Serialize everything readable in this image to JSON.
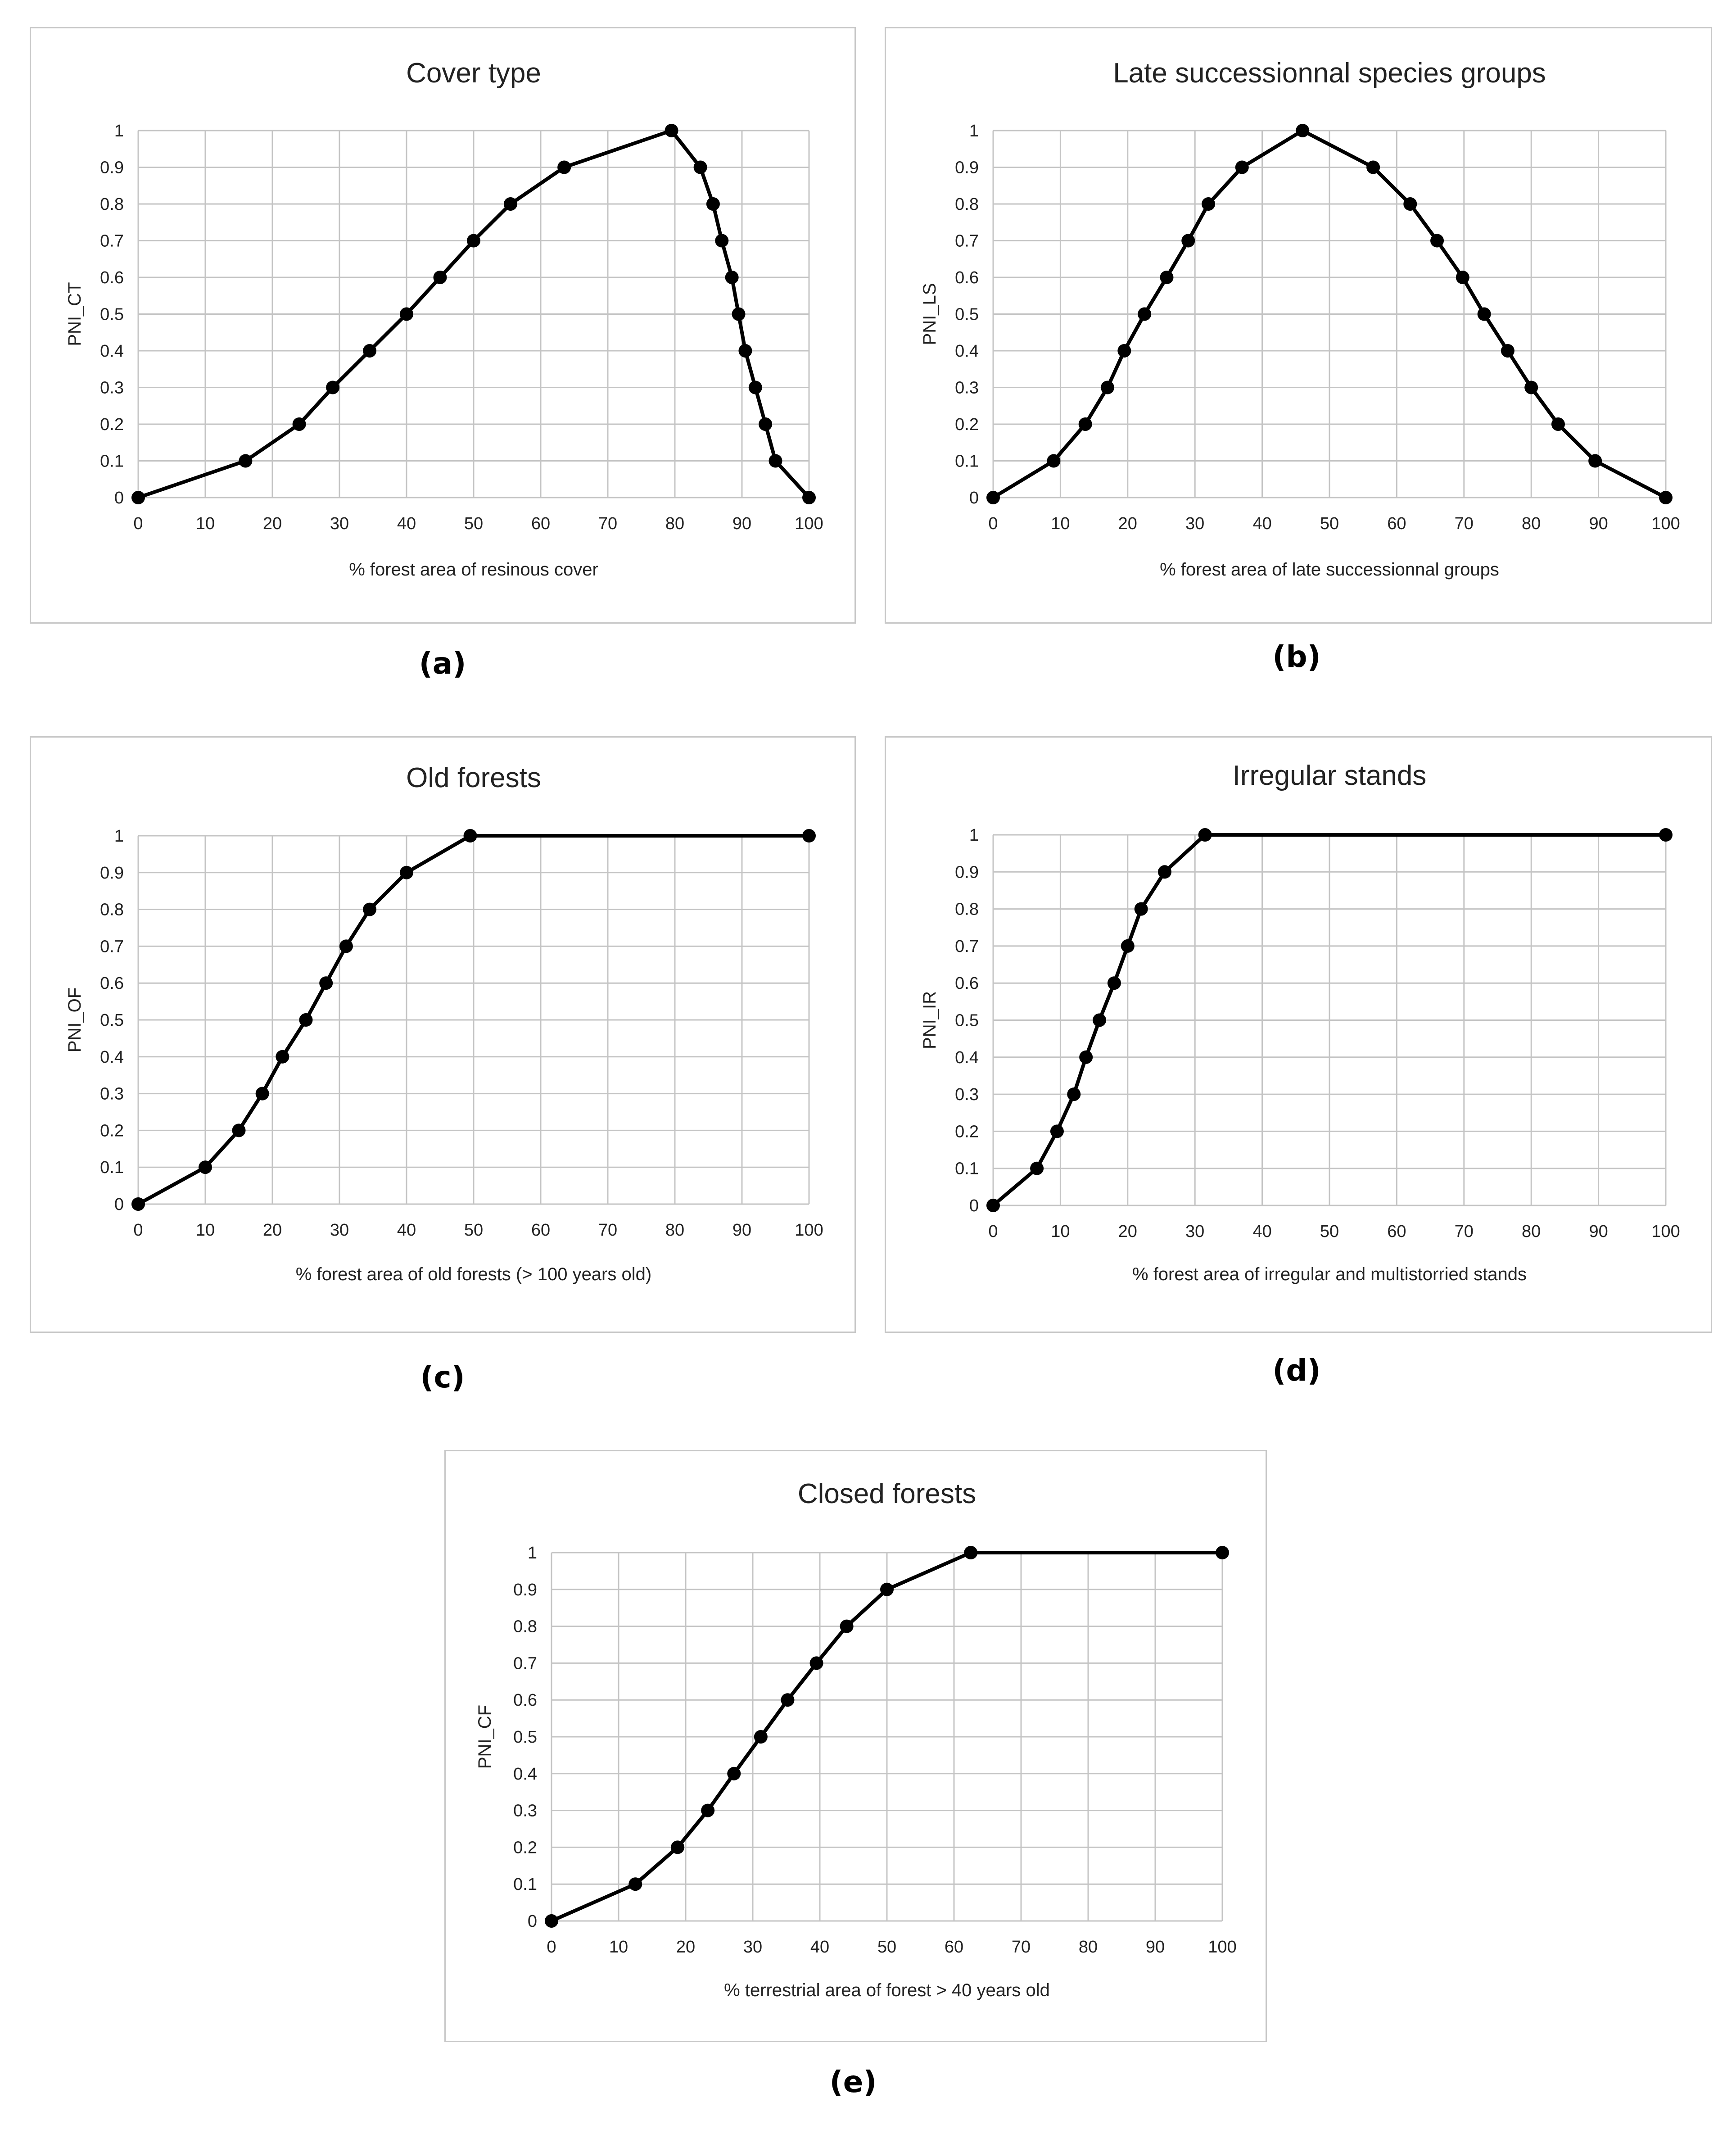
{
  "chart_data": [
    {
      "id": "a",
      "type": "line",
      "title": "Cover type",
      "xlabel": "% forest area of resinous cover",
      "ylabel": "PNI_CT",
      "caption": "(a)",
      "xlim": [
        0,
        100
      ],
      "ylim": [
        0,
        1
      ],
      "xticks": [
        "0",
        "10",
        "20",
        "30",
        "40",
        "50",
        "60",
        "70",
        "80",
        "90",
        "100"
      ],
      "yticks": [
        "0",
        "0.1",
        "0.2",
        "0.3",
        "0.4",
        "0.5",
        "0.6",
        "0.7",
        "0.8",
        "0.9",
        "1"
      ],
      "grid": true,
      "points": [
        [
          0,
          0
        ],
        [
          16,
          0.1
        ],
        [
          24,
          0.2
        ],
        [
          29,
          0.3
        ],
        [
          34.5,
          0.4
        ],
        [
          40,
          0.5
        ],
        [
          45,
          0.6
        ],
        [
          50,
          0.7
        ],
        [
          55.5,
          0.8
        ],
        [
          63.5,
          0.9
        ],
        [
          79.5,
          1
        ],
        [
          83.8,
          0.9
        ],
        [
          85.7,
          0.8
        ],
        [
          87,
          0.7
        ],
        [
          88.5,
          0.6
        ],
        [
          89.5,
          0.5
        ],
        [
          90.5,
          0.4
        ],
        [
          92,
          0.3
        ],
        [
          93.5,
          0.2
        ],
        [
          95,
          0.1
        ],
        [
          100,
          0
        ]
      ]
    },
    {
      "id": "b",
      "type": "line",
      "title": "Late successionnal species groups",
      "xlabel": "% forest area of late successionnal groups",
      "ylabel": "PNI_LS",
      "caption": "(b)",
      "xlim": [
        0,
        100
      ],
      "ylim": [
        0,
        1
      ],
      "xticks": [
        "0",
        "10",
        "20",
        "30",
        "40",
        "50",
        "60",
        "70",
        "80",
        "90",
        "100"
      ],
      "yticks": [
        "0",
        "0.1",
        "0.2",
        "0.3",
        "0.4",
        "0.5",
        "0.6",
        "0.7",
        "0.8",
        "0.9",
        "1"
      ],
      "grid": true,
      "points": [
        [
          0,
          0
        ],
        [
          9,
          0.1
        ],
        [
          13.7,
          0.2
        ],
        [
          17,
          0.3
        ],
        [
          19.5,
          0.4
        ],
        [
          22.5,
          0.5
        ],
        [
          25.8,
          0.6
        ],
        [
          29,
          0.7
        ],
        [
          32,
          0.8
        ],
        [
          37,
          0.9
        ],
        [
          46,
          1
        ],
        [
          56.5,
          0.9
        ],
        [
          62,
          0.8
        ],
        [
          66,
          0.7
        ],
        [
          69.8,
          0.6
        ],
        [
          73,
          0.5
        ],
        [
          76.5,
          0.4
        ],
        [
          80,
          0.3
        ],
        [
          84,
          0.2
        ],
        [
          89.5,
          0.1
        ],
        [
          100,
          0
        ]
      ]
    },
    {
      "id": "c",
      "type": "line",
      "title": "Old forests",
      "xlabel": "% forest area of old forests (> 100 years old)",
      "ylabel": "PNI_OF",
      "caption": "(c)",
      "xlim": [
        0,
        100
      ],
      "ylim": [
        0,
        1
      ],
      "xticks": [
        "0",
        "10",
        "20",
        "30",
        "40",
        "50",
        "60",
        "70",
        "80",
        "90",
        "100"
      ],
      "yticks": [
        "0",
        "0.1",
        "0.2",
        "0.3",
        "0.4",
        "0.5",
        "0.6",
        "0.7",
        "0.8",
        "0.9",
        "1"
      ],
      "grid": true,
      "points": [
        [
          0,
          0
        ],
        [
          10,
          0.1
        ],
        [
          15,
          0.2
        ],
        [
          18.5,
          0.3
        ],
        [
          21.5,
          0.4
        ],
        [
          25,
          0.5
        ],
        [
          28,
          0.6
        ],
        [
          31,
          0.7
        ],
        [
          34.5,
          0.8
        ],
        [
          40,
          0.9
        ],
        [
          49.5,
          1
        ],
        [
          100,
          1
        ]
      ]
    },
    {
      "id": "d",
      "type": "line",
      "title": "Irregular stands",
      "xlabel": "% forest area of irregular and multistorried stands",
      "ylabel": "PNI_IR",
      "caption": "(d)",
      "xlim": [
        0,
        100
      ],
      "ylim": [
        0,
        1
      ],
      "xticks": [
        "0",
        "10",
        "20",
        "30",
        "40",
        "50",
        "60",
        "70",
        "80",
        "90",
        "100"
      ],
      "yticks": [
        "0",
        "0.1",
        "0.2",
        "0.3",
        "0.4",
        "0.5",
        "0.6",
        "0.7",
        "0.8",
        "0.9",
        "1"
      ],
      "grid": true,
      "points": [
        [
          0,
          0
        ],
        [
          6.5,
          0.1
        ],
        [
          9.5,
          0.2
        ],
        [
          12,
          0.3
        ],
        [
          13.8,
          0.4
        ],
        [
          15.8,
          0.5
        ],
        [
          18,
          0.6
        ],
        [
          20,
          0.7
        ],
        [
          22,
          0.8
        ],
        [
          25.5,
          0.9
        ],
        [
          31.5,
          1
        ],
        [
          100,
          1
        ]
      ]
    },
    {
      "id": "e",
      "type": "line",
      "title": "Closed forests",
      "xlabel": "% terrestrial area of forest > 40 years old",
      "ylabel": "PNI_CF",
      "caption": "(e)",
      "xlim": [
        0,
        100
      ],
      "ylim": [
        0,
        1
      ],
      "xticks": [
        "0",
        "10",
        "20",
        "30",
        "40",
        "50",
        "60",
        "70",
        "80",
        "90",
        "100"
      ],
      "yticks": [
        "0",
        "0.1",
        "0.2",
        "0.3",
        "0.4",
        "0.5",
        "0.6",
        "0.7",
        "0.8",
        "0.9",
        "1"
      ],
      "grid": true,
      "points": [
        [
          0,
          0
        ],
        [
          12.5,
          0.1
        ],
        [
          18.8,
          0.2
        ],
        [
          23.3,
          0.3
        ],
        [
          27.2,
          0.4
        ],
        [
          31.2,
          0.5
        ],
        [
          35.2,
          0.6
        ],
        [
          39.5,
          0.7
        ],
        [
          44,
          0.8
        ],
        [
          50,
          0.9
        ],
        [
          62.5,
          1
        ],
        [
          100,
          1
        ]
      ]
    }
  ]
}
